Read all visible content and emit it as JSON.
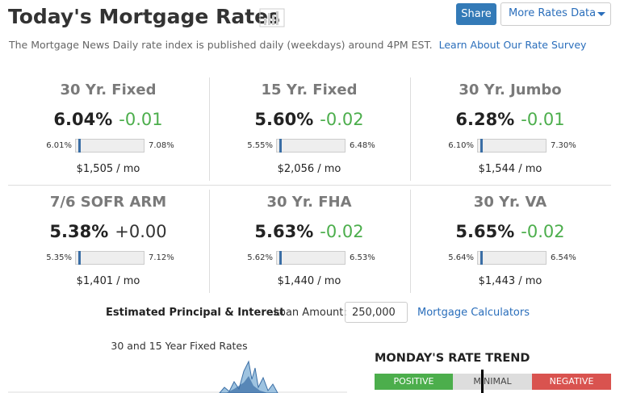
{
  "header": {
    "title": "Today's Mortgage Rates",
    "subtitle": "The Mortgage News Daily rate index is published daily (weekdays) around 4PM EST.",
    "link": "Learn About Our Rate Survey",
    "share": "Share",
    "more": "More Rates Data"
  },
  "rates": [
    {
      "name": "30 Yr. Fixed",
      "rate": "6.04%",
      "change": "-0.01",
      "low": "6.01%",
      "high": "7.08%",
      "payment": "$1,505 / mo"
    },
    {
      "name": "15 Yr. Fixed",
      "rate": "5.60%",
      "change": "-0.02",
      "low": "5.55%",
      "high": "6.48%",
      "payment": "$2,056 / mo"
    },
    {
      "name": "30 Yr. Jumbo",
      "rate": "6.28%",
      "change": "-0.01",
      "low": "6.10%",
      "high": "7.30%",
      "payment": "$1,544 / mo"
    },
    {
      "name": "7/6 SOFR ARM",
      "rate": "5.38%",
      "change": "+0.00",
      "low": "5.35%",
      "high": "7.12%",
      "payment": "$1,401 / mo"
    },
    {
      "name": "30 Yr. FHA",
      "rate": "5.63%",
      "change": "-0.02",
      "low": "5.62%",
      "high": "6.53%",
      "payment": "$1,440 / mo"
    },
    {
      "name": "30 Yr. VA",
      "rate": "5.65%",
      "change": "-0.02",
      "low": "5.64%",
      "high": "6.54%",
      "payment": "$1,443 / mo"
    }
  ],
  "calculator": {
    "label": "Estimated Principal & Interest",
    "loan_label": "Loan Amount:",
    "loan_value": "250,000",
    "link": "Mortgage Calculators"
  },
  "chart_title": "30 and 15 Year Fixed Rates",
  "trend": {
    "title": "MONDAY'S RATE TREND",
    "positive": "POSITIVE",
    "minimal": "MINIMAL",
    "negative": "NEGATIVE"
  }
}
